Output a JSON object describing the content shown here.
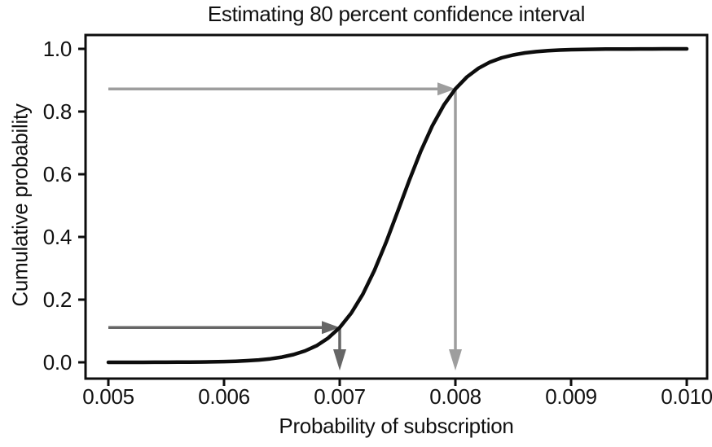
{
  "chart_data": {
    "type": "line",
    "title": "Estimating 80 percent confidence interval",
    "xlabel": "Probability of subscription",
    "ylabel": "Cumulative probability",
    "xlim": [
      0.005,
      0.01
    ],
    "ylim": [
      0.0,
      1.0
    ],
    "x_ticks": [
      0.005,
      0.006,
      0.007,
      0.008,
      0.009,
      0.01
    ],
    "x_tick_labels": [
      "0.005",
      "0.006",
      "0.007",
      "0.008",
      "0.009",
      "0.010"
    ],
    "y_ticks": [
      0.0,
      0.2,
      0.4,
      0.6,
      0.8,
      1.0
    ],
    "y_tick_labels": [
      "0.0",
      "0.2",
      "0.4",
      "0.6",
      "0.8",
      "1.0"
    ],
    "grid": false,
    "legend": false,
    "curve": {
      "color": "#0d0d0d",
      "model": {
        "type": "logistic_cdf",
        "mu": 0.00752,
        "s": 0.00025
      },
      "points": [
        [
          0.005,
          0.0
        ],
        [
          0.0051,
          0.0001
        ],
        [
          0.0052,
          0.0001
        ],
        [
          0.0053,
          0.0001
        ],
        [
          0.0054,
          0.0002
        ],
        [
          0.0055,
          0.0003
        ],
        [
          0.0056,
          0.0005
        ],
        [
          0.0057,
          0.0007
        ],
        [
          0.0058,
          0.001
        ],
        [
          0.0059,
          0.0015
        ],
        [
          0.006,
          0.0023
        ],
        [
          0.0061,
          0.0034
        ],
        [
          0.0062,
          0.0051
        ],
        [
          0.0063,
          0.0075
        ],
        [
          0.0064,
          0.0112
        ],
        [
          0.0065,
          0.0166
        ],
        [
          0.0066,
          0.0246
        ],
        [
          0.0067,
          0.0363
        ],
        [
          0.0068,
          0.0531
        ],
        [
          0.0069,
          0.0773
        ],
        [
          0.007,
          0.111
        ],
        [
          0.0071,
          0.1571
        ],
        [
          0.0072,
          0.2175
        ],
        [
          0.0073,
          0.2932
        ],
        [
          0.0074,
          0.3822
        ],
        [
          0.0075,
          0.48
        ],
        [
          0.0076,
          0.5793
        ],
        [
          0.0077,
          0.6726
        ],
        [
          0.0078,
          0.754
        ],
        [
          0.0079,
          0.8206
        ],
        [
          0.008,
          0.8721
        ],
        [
          0.0081,
          0.9105
        ],
        [
          0.0082,
          0.9382
        ],
        [
          0.0083,
          0.9578
        ],
        [
          0.0084,
          0.9713
        ],
        [
          0.0085,
          0.9805
        ],
        [
          0.0086,
          0.9869
        ],
        [
          0.0087,
          0.9912
        ],
        [
          0.0088,
          0.9941
        ],
        [
          0.0089,
          0.996
        ],
        [
          0.009,
          0.9973
        ],
        [
          0.0091,
          0.9982
        ],
        [
          0.0092,
          0.9988
        ],
        [
          0.0093,
          0.9992
        ],
        [
          0.0094,
          0.9995
        ],
        [
          0.0095,
          0.9996
        ],
        [
          0.0096,
          0.9998
        ],
        [
          0.0097,
          0.9998
        ],
        [
          0.0098,
          0.9999
        ],
        [
          0.0099,
          0.9999
        ],
        [
          0.01,
          1.0
        ]
      ]
    },
    "annotations": [
      {
        "id": "lower",
        "cum_prob": 0.111,
        "x": 0.007,
        "color": "#666666"
      },
      {
        "id": "upper",
        "cum_prob": 0.872,
        "x": 0.008,
        "color": "#9e9e9e"
      }
    ],
    "colors": {
      "axis": "#0d0d0d",
      "text": "#111111",
      "background": "#ffffff"
    }
  }
}
